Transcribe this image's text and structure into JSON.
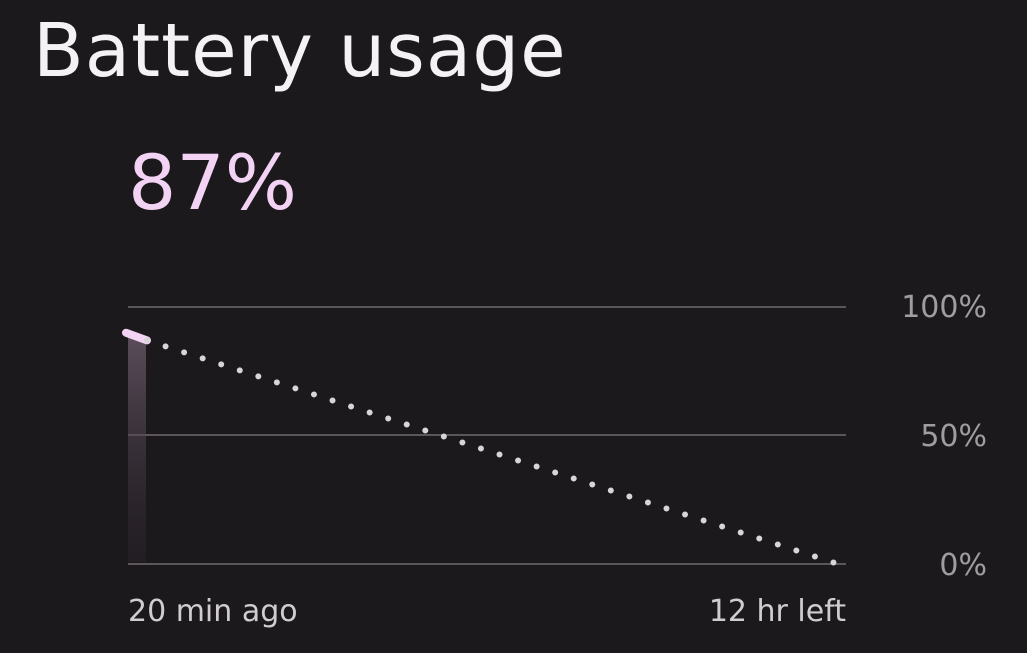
{
  "title": "Battery usage",
  "current_level": "87%",
  "chart_data": {
    "type": "line",
    "y_ticks": [
      "100%",
      "50%",
      "0%"
    ],
    "ylim": [
      0,
      100
    ],
    "x_labels": [
      "20 min ago",
      "12 hr left"
    ],
    "series": [
      {
        "style": "solid",
        "color": "#f3d3f3",
        "points": [
          {
            "x": "20 min ago",
            "y": 90
          },
          {
            "x": "now",
            "y": 87
          }
        ]
      },
      {
        "style": "dotted",
        "color": "#d8d4d8",
        "points": [
          {
            "x": "now",
            "y": 87
          },
          {
            "x": "12 hr left",
            "y": 0
          }
        ]
      }
    ],
    "grid": true
  }
}
